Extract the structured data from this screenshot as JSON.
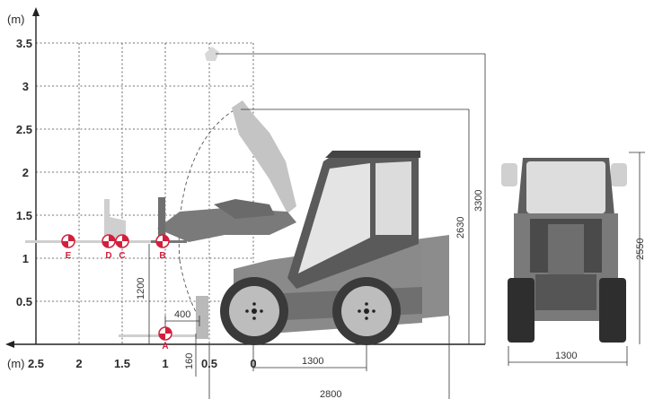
{
  "colors": {
    "accent": "#d21f3c",
    "body_gray": "#8a8a8a",
    "dark_gray": "#555555",
    "light_gray": "#c9c9c9",
    "tyre": "#3a3a3a",
    "grid": "#3a3a3a",
    "dim": "#333333"
  },
  "axis": {
    "unit_label": "(m)",
    "y_unit_label": "(m)",
    "y_ticks": [
      "3.5",
      "3",
      "2.5",
      "2",
      "1.5",
      "1",
      "0.5"
    ],
    "x_ticks": [
      "2.5",
      "2",
      "1.5",
      "1",
      "0.5",
      "0"
    ]
  },
  "markers": [
    {
      "id": "E",
      "label": "E"
    },
    {
      "id": "D",
      "label": "D"
    },
    {
      "id": "C",
      "label": "C"
    },
    {
      "id": "B",
      "label": "B"
    },
    {
      "id": "A",
      "label": "A"
    }
  ],
  "dimensions": {
    "reach_400": "400",
    "height_1200": "1200",
    "depth_160": "160",
    "wheelbase_1300": "1300",
    "length_2800": "2800",
    "height_2630": "2630",
    "height_3300": "3300",
    "front_height_2550": "2550",
    "front_width_1300": "1300"
  }
}
